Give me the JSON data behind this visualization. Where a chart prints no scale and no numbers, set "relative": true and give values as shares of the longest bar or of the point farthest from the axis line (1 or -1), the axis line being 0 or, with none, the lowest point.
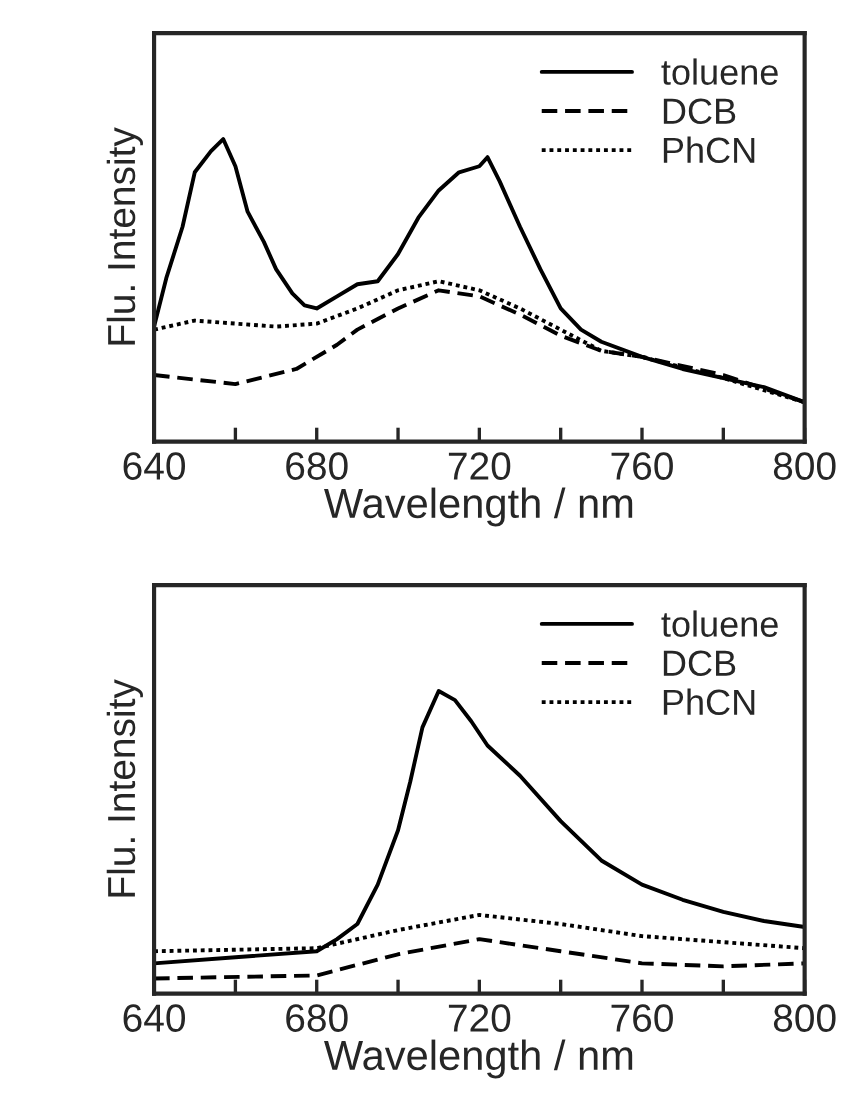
{
  "chart_data": [
    {
      "type": "line",
      "xlabel": "Wavelength / nm",
      "ylabel": "Flu. Intensity",
      "relative": true,
      "legend": "top right",
      "tick_labels": "x",
      "grid": false,
      "xlim": [
        640,
        800
      ],
      "xticks": [
        640,
        {
          "value": 660,
          "label": null
        },
        680,
        {
          "value": 700,
          "label": null
        },
        720,
        {
          "value": 740,
          "label": null
        },
        760,
        {
          "value": 780,
          "label": null
        },
        800
      ],
      "series": [
        {
          "name": "toluene",
          "color": "#000000",
          "line_style": "solid",
          "x": [
            640,
            643,
            647,
            650,
            654,
            657,
            660,
            663,
            667,
            670,
            674,
            677,
            680,
            685,
            690,
            695,
            700,
            705,
            710,
            715,
            720,
            722,
            725,
            730,
            735,
            740,
            745,
            750,
            760,
            770,
            780,
            790,
            800
          ],
          "values": [
            0.38,
            0.54,
            0.71,
            0.89,
            0.96,
            1.0,
            0.91,
            0.76,
            0.66,
            0.57,
            0.49,
            0.45,
            0.44,
            0.48,
            0.52,
            0.53,
            0.62,
            0.74,
            0.83,
            0.89,
            0.91,
            0.94,
            0.86,
            0.71,
            0.57,
            0.44,
            0.37,
            0.33,
            0.28,
            0.24,
            0.21,
            0.18,
            0.13
          ]
        },
        {
          "name": "DCB",
          "color": "#000000",
          "line_style": "dashed",
          "x": [
            640,
            660,
            675,
            685,
            690,
            700,
            710,
            720,
            730,
            740,
            750,
            760,
            780,
            800
          ],
          "values": [
            0.22,
            0.19,
            0.24,
            0.32,
            0.37,
            0.44,
            0.5,
            0.48,
            0.42,
            0.35,
            0.3,
            0.28,
            0.22,
            0.13
          ]
        },
        {
          "name": "PhCN",
          "color": "#000000",
          "line_style": "dotted",
          "x": [
            640,
            650,
            660,
            670,
            680,
            690,
            700,
            710,
            720,
            730,
            740,
            750,
            760,
            780,
            800
          ],
          "values": [
            0.37,
            0.4,
            0.39,
            0.38,
            0.39,
            0.44,
            0.5,
            0.53,
            0.5,
            0.44,
            0.37,
            0.3,
            0.28,
            0.21,
            0.13
          ]
        }
      ]
    },
    {
      "type": "line",
      "xlabel": "Wavelength / nm",
      "ylabel": "Flu. Intensity",
      "relative": true,
      "legend": "top right",
      "tick_labels": "x",
      "grid": false,
      "xlim": [
        640,
        800
      ],
      "xticks": [
        640,
        {
          "value": 660,
          "label": null
        },
        680,
        {
          "value": 700,
          "label": null
        },
        720,
        {
          "value": 740,
          "label": null
        },
        760,
        {
          "value": 780,
          "label": null
        },
        800
      ],
      "series": [
        {
          "name": "toluene",
          "color": "#000000",
          "line_style": "solid",
          "x": [
            640,
            660,
            680,
            685,
            690,
            695,
            700,
            703,
            706,
            710,
            714,
            718,
            722,
            730,
            740,
            750,
            760,
            770,
            780,
            790,
            800
          ],
          "values": [
            0.1,
            0.12,
            0.14,
            0.18,
            0.23,
            0.36,
            0.54,
            0.7,
            0.88,
            1.0,
            0.97,
            0.9,
            0.82,
            0.72,
            0.57,
            0.44,
            0.36,
            0.31,
            0.27,
            0.24,
            0.22
          ]
        },
        {
          "name": "DCB",
          "color": "#000000",
          "line_style": "dashed",
          "x": [
            640,
            680,
            700,
            720,
            740,
            760,
            780,
            800
          ],
          "values": [
            0.05,
            0.06,
            0.13,
            0.18,
            0.14,
            0.1,
            0.09,
            0.1
          ]
        },
        {
          "name": "PhCN",
          "color": "#000000",
          "line_style": "dotted",
          "x": [
            640,
            680,
            700,
            720,
            740,
            760,
            780,
            800
          ],
          "values": [
            0.14,
            0.15,
            0.21,
            0.26,
            0.23,
            0.19,
            0.17,
            0.15
          ]
        }
      ]
    }
  ]
}
